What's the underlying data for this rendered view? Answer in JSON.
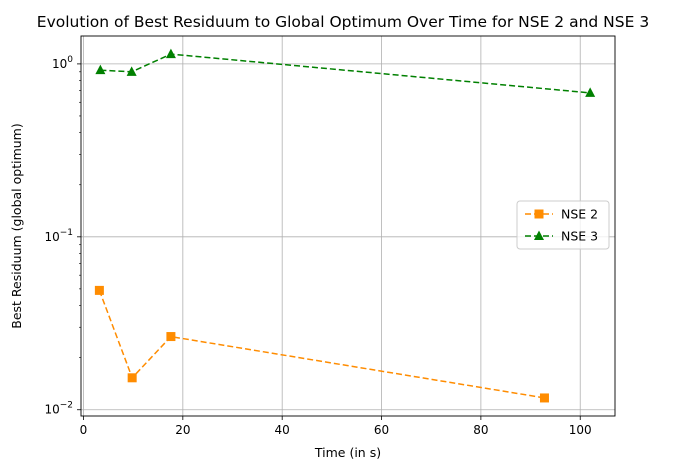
{
  "chart_data": {
    "type": "line",
    "title": "Evolution of Best Residuum to Global Optimum Over Time for NSE 2 and NSE 3",
    "xlabel": "Time (in s)",
    "ylabel": "Best Residuum (global optimum)",
    "xlim": [
      -0.5,
      107
    ],
    "xticks": [
      0,
      20,
      40,
      60,
      80,
      100
    ],
    "xtick_labels": [
      "0",
      "20",
      "40",
      "60",
      "80",
      "100"
    ],
    "ylim": [
      0.0092,
      1.45
    ],
    "yscale": "log",
    "yticks": [
      0.01,
      0.1,
      1
    ],
    "ytick_labels": [
      {
        "base": "10",
        "exp": "−2"
      },
      {
        "base": "10",
        "exp": "−1"
      },
      {
        "base": "10",
        "exp": "0"
      }
    ],
    "grid": true,
    "legend_position": "center-right",
    "series": [
      {
        "name": "NSE 2",
        "color": "#ff8c00",
        "marker": "square",
        "linestyle": "dashed",
        "x": [
          3.2,
          9.8,
          17.6,
          92.8
        ],
        "y": [
          0.049,
          0.0153,
          0.0265,
          0.0117
        ]
      },
      {
        "name": "NSE 3",
        "color": "#008000",
        "marker": "triangle",
        "linestyle": "dashed",
        "x": [
          3.4,
          9.7,
          17.6,
          102.0
        ],
        "y": [
          0.92,
          0.9,
          1.14,
          0.68
        ]
      }
    ]
  }
}
